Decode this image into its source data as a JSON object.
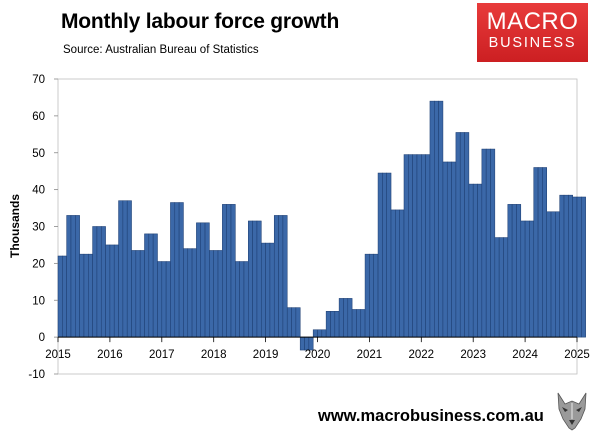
{
  "header": {
    "title": "Monthly labour force growth",
    "subtitle": "Source: Australian Bureau of Statistics"
  },
  "logo": {
    "line1": "MACRO",
    "line2": "BUSINESS",
    "color": "#d42a2c"
  },
  "footer": {
    "url": "www.macrobusiness.com.au",
    "icon": "wolf-icon"
  },
  "chart_data": {
    "type": "bar",
    "ylabel": "Thousands",
    "xlabel": "",
    "xlim": [
      2015,
      2025
    ],
    "ylim": [
      -10,
      70
    ],
    "yticks": [
      70,
      60,
      50,
      40,
      30,
      20,
      10,
      0,
      -10
    ],
    "xticks": [
      "2015",
      "2016",
      "2017",
      "2018",
      "2019",
      "2020",
      "2021",
      "2022",
      "2023",
      "2024",
      "2025"
    ],
    "grid": false,
    "bar_color": "#3b68a8",
    "series": [
      {
        "values": [
          22,
          22,
          33,
          33,
          33,
          22.5,
          22.5,
          22.5,
          30,
          30,
          30,
          25,
          25,
          25,
          37,
          37,
          37,
          23.5,
          23.5,
          23.5,
          28,
          28,
          28,
          20.5,
          20.5,
          20.5,
          36.5,
          36.5,
          36.5,
          24,
          24,
          24,
          31,
          31,
          31,
          23.5,
          23.5,
          23.5,
          36,
          36,
          36,
          20.5,
          20.5,
          20.5,
          31.5,
          31.5,
          31.5,
          25.5,
          25.5,
          25.5,
          33,
          33,
          33,
          8,
          8,
          8,
          -3.5,
          -3.5,
          -3.5,
          2,
          2,
          2,
          7,
          7,
          7,
          10.5,
          10.5,
          10.5,
          7.5,
          7.5,
          7.5,
          22.5,
          22.5,
          22.5,
          44.5,
          44.5,
          44.5,
          34.5,
          34.5,
          34.5,
          49.5,
          49.5,
          49.5,
          49.5,
          49.5,
          49.5,
          64,
          64,
          64,
          47.5,
          47.5,
          47.5,
          55.5,
          55.5,
          55.5,
          41.5,
          41.5,
          41.5,
          51,
          51,
          51,
          27,
          27,
          27,
          36,
          36,
          36,
          31.5,
          31.5,
          31.5,
          46,
          46,
          46,
          34,
          34,
          34,
          38.5,
          38.5,
          38.5,
          38,
          38,
          38
        ]
      }
    ]
  }
}
